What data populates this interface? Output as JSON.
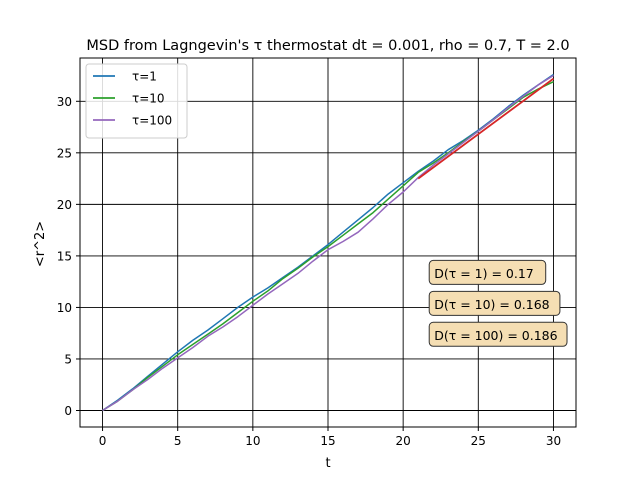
{
  "chart_data": {
    "type": "line",
    "title": "MSD from Lagngevin's τ thermostat dt = 0.001, rho = 0.7, T = 2.0",
    "xlabel": "t",
    "ylabel": "<r^2>",
    "xlim": [
      -1.5,
      31.5
    ],
    "ylim": [
      -1.6,
      34.2
    ],
    "xticks": [
      0,
      5,
      10,
      15,
      20,
      25,
      30
    ],
    "yticks": [
      0,
      5,
      10,
      15,
      20,
      25,
      30
    ],
    "grid": true,
    "legend_position": "upper-left",
    "series": [
      {
        "name": "τ=1",
        "color": "#1f77b4",
        "x": [
          0,
          1,
          2,
          3,
          4,
          5,
          6,
          7,
          8,
          9,
          10,
          11,
          12,
          13,
          14,
          15,
          16,
          17,
          18,
          19,
          20,
          21,
          22,
          23,
          24,
          25,
          26,
          27,
          28,
          29,
          30
        ],
        "y": [
          0,
          1.0,
          2.1,
          3.3,
          4.5,
          5.7,
          6.8,
          7.8,
          8.9,
          10.0,
          11.0,
          11.9,
          12.9,
          13.9,
          15.0,
          16.1,
          17.3,
          18.5,
          19.7,
          21.0,
          22.1,
          23.2,
          24.2,
          25.3,
          26.2,
          27.2,
          28.3,
          29.5,
          30.6,
          31.6,
          32.6
        ]
      },
      {
        "name": "τ=10",
        "color": "#2ca02c",
        "x": [
          0,
          1,
          2,
          3,
          4,
          5,
          6,
          7,
          8,
          9,
          10,
          11,
          12,
          13,
          14,
          15,
          16,
          17,
          18,
          19,
          20,
          21,
          22,
          23,
          24,
          25,
          26,
          27,
          28,
          29,
          30
        ],
        "y": [
          0,
          0.9,
          2.0,
          3.2,
          4.3,
          5.4,
          6.4,
          7.4,
          8.4,
          9.5,
          10.6,
          11.6,
          12.8,
          13.8,
          14.9,
          15.9,
          17.0,
          18.1,
          19.2,
          20.5,
          21.8,
          23.1,
          24.0,
          25.0,
          26.1,
          27.1,
          28.2,
          29.3,
          30.4,
          31.2,
          31.9
        ]
      },
      {
        "name": "τ=100",
        "color": "#9467bd",
        "x": [
          0,
          1,
          2,
          3,
          4,
          5,
          6,
          7,
          8,
          9,
          10,
          11,
          12,
          13,
          14,
          15,
          16,
          17,
          18,
          19,
          20,
          21,
          22,
          23,
          24,
          25,
          26,
          27,
          28,
          29,
          30
        ],
        "y": [
          0,
          0.9,
          2.0,
          3.0,
          4.1,
          5.1,
          6.1,
          7.2,
          8.1,
          9.1,
          10.2,
          11.3,
          12.3,
          13.3,
          14.5,
          15.6,
          16.4,
          17.3,
          18.6,
          20.0,
          21.2,
          22.6,
          23.8,
          24.9,
          26.0,
          27.1,
          28.2,
          29.4,
          30.5,
          31.6,
          32.5
        ]
      },
      {
        "color": "#d62728",
        "x": [
          21,
          30
        ],
        "y": [
          22.5,
          32.2
        ]
      }
    ],
    "annotations": [
      {
        "text": "D(τ = 1) = 0.17",
        "x": 22,
        "y": 13.3
      },
      {
        "text": "D(τ = 10) = 0.168",
        "x": 22,
        "y": 10.3
      },
      {
        "text": "D(τ = 100) = 0.186",
        "x": 22,
        "y": 7.3
      }
    ],
    "annotation_box": {
      "fill": "#f5deb3",
      "edge": "#333333"
    }
  }
}
